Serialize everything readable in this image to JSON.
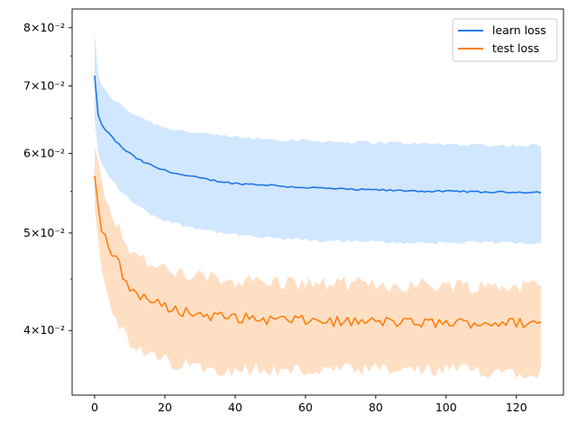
{
  "chart_data": {
    "type": "line",
    "title": "",
    "xlabel": "",
    "ylabel": "",
    "xlim": [
      -6.4,
      133.4
    ],
    "ylim": [
      0.0345,
      0.0835
    ],
    "yscale": "log",
    "grid": false,
    "legend_position": "top-right",
    "x_ticks": [
      {
        "value": 0,
        "label": "0"
      },
      {
        "value": 20,
        "label": "20"
      },
      {
        "value": 40,
        "label": "40"
      },
      {
        "value": 60,
        "label": "60"
      },
      {
        "value": 80,
        "label": "80"
      },
      {
        "value": 100,
        "label": "100"
      },
      {
        "value": 120,
        "label": "120"
      }
    ],
    "y_ticks": [
      {
        "value": 0.04,
        "label": "4×10⁻²"
      },
      {
        "value": 0.05,
        "label": "5×10⁻²"
      },
      {
        "value": 0.06,
        "label": "6×10⁻²"
      },
      {
        "value": 0.07,
        "label": "7×10⁻²"
      },
      {
        "value": 0.08,
        "label": "8×10⁻²"
      }
    ],
    "y_minor_ticks": [
      0.045,
      0.055,
      0.065,
      0.075
    ],
    "series": [
      {
        "name": "learn loss",
        "color": "#1f77e6",
        "band_color": "#cce4ff",
        "x_start": 0,
        "x_end": 127,
        "key_x": [
          0,
          1,
          2,
          4,
          6,
          8,
          10,
          12,
          14,
          16,
          18,
          20,
          25,
          30,
          35,
          40,
          45,
          50,
          55,
          60,
          65,
          70,
          75,
          80,
          85,
          90,
          95,
          100,
          105,
          110,
          115,
          120,
          127
        ],
        "key_mean": [
          0.0717,
          0.0655,
          0.064,
          0.0628,
          0.0617,
          0.0607,
          0.06,
          0.0593,
          0.0588,
          0.0584,
          0.058,
          0.0577,
          0.0571,
          0.0567,
          0.0563,
          0.056,
          0.0559,
          0.0558,
          0.0556,
          0.0555,
          0.0554,
          0.0553,
          0.0552,
          0.0552,
          0.0551,
          0.0551,
          0.055,
          0.055,
          0.055,
          0.0549,
          0.0549,
          0.0549,
          0.0549
        ],
        "key_upper": [
          0.079,
          0.072,
          0.07,
          0.0685,
          0.0677,
          0.0668,
          0.066,
          0.0655,
          0.065,
          0.0645,
          0.064,
          0.0637,
          0.0632,
          0.0628,
          0.0625,
          0.0623,
          0.0621,
          0.062,
          0.0619,
          0.0618,
          0.0617,
          0.0616,
          0.0616,
          0.0615,
          0.0615,
          0.0614,
          0.0613,
          0.0613,
          0.0612,
          0.0612,
          0.0611,
          0.0611,
          0.0611
        ],
        "key_lower": [
          0.0648,
          0.06,
          0.0585,
          0.057,
          0.0558,
          0.0548,
          0.054,
          0.0533,
          0.0527,
          0.0522,
          0.0518,
          0.0515,
          0.0509,
          0.0505,
          0.0501,
          0.0498,
          0.0496,
          0.0494,
          0.0493,
          0.0492,
          0.0491,
          0.0491,
          0.049,
          0.049,
          0.0489,
          0.0489,
          0.0489,
          0.0489,
          0.0489,
          0.0489,
          0.0489,
          0.0489,
          0.0489
        ],
        "jitter": 0.002,
        "band_jitter": 0.004
      },
      {
        "name": "test loss",
        "color": "#ff7f0e",
        "band_color": "#ffdcbe",
        "x_start": 0,
        "x_end": 127,
        "key_x": [
          0,
          1,
          2,
          3,
          4,
          5,
          6,
          7,
          8,
          9,
          10,
          12,
          15,
          18,
          20,
          25,
          30,
          35,
          40,
          45,
          50,
          55,
          60,
          65,
          70,
          75,
          80,
          85,
          90,
          95,
          100,
          105,
          110,
          115,
          120,
          127
        ],
        "key_mean": [
          0.057,
          0.053,
          0.0505,
          0.0495,
          0.0485,
          0.0475,
          0.047,
          0.0465,
          0.0455,
          0.0445,
          0.044,
          0.0436,
          0.043,
          0.0425,
          0.0422,
          0.0418,
          0.0415,
          0.0413,
          0.0412,
          0.0411,
          0.041,
          0.041,
          0.0409,
          0.0409,
          0.0408,
          0.0408,
          0.0408,
          0.0408,
          0.0407,
          0.0407,
          0.0407,
          0.0407,
          0.0407,
          0.0407,
          0.0407,
          0.0407
        ],
        "key_upper": [
          0.061,
          0.0585,
          0.0565,
          0.055,
          0.0535,
          0.0525,
          0.0515,
          0.0505,
          0.0498,
          0.049,
          0.0483,
          0.0475,
          0.0468,
          0.0462,
          0.0458,
          0.0455,
          0.0452,
          0.045,
          0.0449,
          0.0448,
          0.0447,
          0.0446,
          0.0446,
          0.0445,
          0.0445,
          0.0445,
          0.0444,
          0.0444,
          0.0444,
          0.0444,
          0.0444,
          0.0444,
          0.0443,
          0.0443,
          0.0443,
          0.0443
        ],
        "key_lower": [
          0.053,
          0.049,
          0.0465,
          0.0447,
          0.0433,
          0.0422,
          0.0412,
          0.0405,
          0.0398,
          0.0392,
          0.0387,
          0.0382,
          0.0378,
          0.0375,
          0.0373,
          0.037,
          0.0368,
          0.0367,
          0.0366,
          0.0366,
          0.0365,
          0.0365,
          0.0365,
          0.0365,
          0.0365,
          0.0365,
          0.0365,
          0.0365,
          0.0365,
          0.0365,
          0.0365,
          0.0365,
          0.0365,
          0.0365,
          0.0365,
          0.0365
        ],
        "jitter": 0.012,
        "band_jitter": 0.018
      }
    ]
  }
}
